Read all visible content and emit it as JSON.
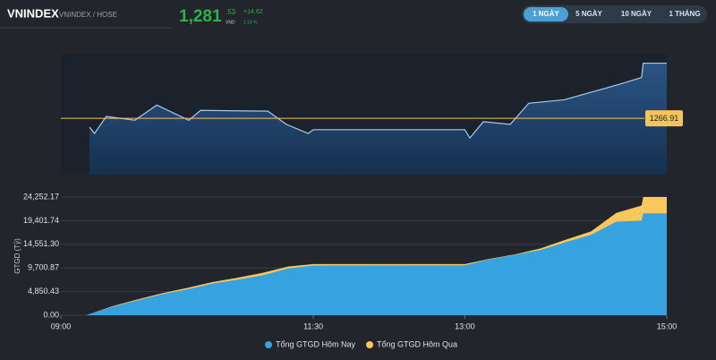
{
  "header": {
    "symbol": "VNINDEX",
    "exchange": "VNINDEX / HOSE",
    "price": "1,281",
    "price_decimals": ".53",
    "currency": "VND",
    "change": "+14.62",
    "change_pct": "1.15 %"
  },
  "tabs": [
    "1 NGÀY",
    "5 NGÀY",
    "10 NGÀY",
    "1 THÁNG"
  ],
  "chart_data": [
    {
      "type": "line",
      "color": "#a9c9e8",
      "reference": 1266.91,
      "reference_color": "#f5c35a",
      "xlim": [
        540,
        900
      ],
      "ylim": [
        1252,
        1284
      ],
      "x": [
        557,
        560,
        567,
        584,
        597,
        616,
        623,
        663,
        674,
        687,
        690,
        780,
        783,
        791,
        807,
        818,
        839,
        871,
        885,
        886,
        900
      ],
      "values": [
        1264.56,
        1262.9,
        1267.4,
        1266.4,
        1270.4,
        1266.4,
        1269.0,
        1268.8,
        1265.3,
        1262.9,
        1263.9,
        1263.9,
        1261.7,
        1266.0,
        1265.3,
        1270.9,
        1271.8,
        1275.8,
        1277.7,
        1281.5,
        1281.5
      ]
    },
    {
      "type": "area",
      "y_label": "GTGD (Tỷ)",
      "grid": true,
      "xlim": [
        540,
        900
      ],
      "xticks": [
        {
          "value": 540,
          "label": "09:00"
        },
        {
          "value": 690,
          "label": "11:30"
        },
        {
          "value": 780,
          "label": "13:00"
        },
        {
          "value": 900,
          "label": "15:00"
        }
      ],
      "ylim": [
        0,
        24252.17
      ],
      "yticks": [
        {
          "value": 0,
          "label": "0.00"
        },
        {
          "value": 4850.43,
          "label": "4,850.43"
        },
        {
          "value": 9700.87,
          "label": "9,700.87"
        },
        {
          "value": 14551.3,
          "label": "14,551.30"
        },
        {
          "value": 19401.74,
          "label": "19,401.74"
        },
        {
          "value": 24252.17,
          "label": "24,252.17"
        }
      ],
      "x": [
        555,
        570,
        585,
        600,
        615,
        630,
        645,
        660,
        675,
        690,
        780,
        795,
        810,
        825,
        840,
        855,
        870,
        885,
        886,
        900
      ],
      "series": [
        {
          "name": "Tổng GTGD Hôm Qua",
          "color": "#f9c75c",
          "values": [
            0,
            1800,
            3200,
            4500,
            5600,
            6800,
            7700,
            8700,
            10000,
            10500,
            10500,
            11600,
            12500,
            13700,
            15500,
            17200,
            21000,
            22500,
            24252.17,
            24252.17
          ]
        },
        {
          "name": "Tổng GTGD Hôm Nay",
          "color": "#36a2e0",
          "values": [
            0,
            1700,
            3000,
            4300,
            5300,
            6500,
            7300,
            8200,
            9600,
            10200,
            10250,
            11500,
            12400,
            13400,
            15000,
            16500,
            19200,
            19400,
            20900,
            20900
          ]
        }
      ]
    }
  ]
}
